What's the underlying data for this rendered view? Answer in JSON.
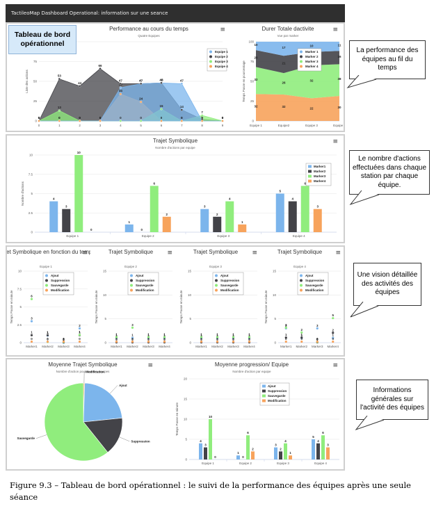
{
  "header": {
    "title": "TactileoMap Dashboard Operational: information sur une seance"
  },
  "badge": {
    "text": "Tableau de bord opérationnel"
  },
  "menu_icon": "hamburger-menu-icon",
  "colors": {
    "blue": "#7cb5ec",
    "black": "#434348",
    "green": "#90ed7d",
    "orange": "#f7a35c"
  },
  "callouts": [
    {
      "text": "La performance des équipes au fil du temps"
    },
    {
      "text": "Le nombre d'actions effectuées dans chaque station par chaque équipe."
    },
    {
      "text": "Une vision détaillée des activités des équipes"
    },
    {
      "text": "Informations générales sur l'activité des équipes"
    }
  ],
  "caption": {
    "text": "Figure 9.3 – Tableau de bord opérationnel : le suivi de la performance des équipes après une seule séance"
  },
  "chart_data": [
    {
      "id": "perf",
      "type": "area",
      "title": "Performance au cours du temps",
      "subtitle": "Quatre Equipes",
      "ylabel": "Liste des actions",
      "x": [
        0,
        1,
        2,
        3,
        4,
        5,
        6,
        7,
        8,
        9
      ],
      "ylim": [
        0,
        100
      ],
      "yticks": [
        0,
        25,
        50,
        75,
        100
      ],
      "series": [
        {
          "name": "Equipe 1",
          "color": "#7cb5ec",
          "values": [
            0,
            0,
            0,
            0,
            42,
            47,
            48,
            47,
            0,
            0
          ]
        },
        {
          "name": "Equipe 2",
          "color": "#434348",
          "values": [
            0,
            53,
            44,
            66,
            47,
            47,
            48,
            14,
            2,
            0
          ]
        },
        {
          "name": "Equipe 3",
          "color": "#90ed7d",
          "values": [
            0,
            13,
            0,
            0,
            0,
            0,
            15,
            0,
            7,
            0
          ]
        },
        {
          "name": "Equipe 4",
          "color": "#f7a35c",
          "values": [
            0,
            0,
            0,
            0,
            34,
            24,
            0,
            0,
            0,
            0
          ]
        }
      ]
    },
    {
      "id": "durer",
      "type": "bar",
      "stacked": "percent",
      "title": "Durer Totale dactivite",
      "subtitle": "Vue par marker",
      "ylabel": "Temps Passe en pourcentage",
      "categories": [
        "Equipe 1",
        "Equipe2",
        "Equipe 3",
        "Equipe 4"
      ],
      "yticks": [
        0,
        25,
        50,
        75,
        100
      ],
      "series": [
        {
          "name": "Marker 1",
          "color": "#7cb5ec",
          "values": [
            10,
            17,
            10,
            11
          ]
        },
        {
          "name": "Marker 2",
          "color": "#434348",
          "values": [
            20,
            21,
            13,
            16
          ]
        },
        {
          "name": "Marker 3",
          "color": "#90ed7d",
          "values": [
            32,
            26,
            32,
            38
          ]
        },
        {
          "name": "Marker 4",
          "color": "#f7a35c",
          "values": [
            32,
            32,
            22,
            30
          ]
        }
      ]
    },
    {
      "id": "trajet",
      "type": "bar",
      "title": "Trajet Symbolique",
      "subtitle": "Nombre d'actions par equipe",
      "ylabel": "Nombre d'actions",
      "categories": [
        "Equipe 1",
        "Equipe 2",
        "Equipe 3",
        "Equipe 4"
      ],
      "ylim": [
        0,
        10
      ],
      "yticks": [
        0,
        2.5,
        5,
        7.5,
        10
      ],
      "series": [
        {
          "name": "Marker1",
          "color": "#7cb5ec",
          "values": [
            4,
            1,
            3,
            5
          ]
        },
        {
          "name": "Marker2",
          "color": "#434348",
          "values": [
            3,
            0,
            2,
            4
          ]
        },
        {
          "name": "Marker3",
          "color": "#90ed7d",
          "values": [
            10,
            6,
            4,
            6
          ]
        },
        {
          "name": "Marker4",
          "color": "#f7a35c",
          "values": [
            0,
            2,
            1,
            3
          ]
        }
      ]
    },
    {
      "id": "s1",
      "type": "scatter",
      "title": "Trajet Symbolique en fonction du temps",
      "subtitle": "Equipe 1",
      "ylabel": "Temps Passe en minute",
      "categories": [
        "Marker1",
        "Marker2",
        "Marker3",
        "Marker4"
      ],
      "ylim": [
        0,
        10
      ],
      "yticks": [
        0,
        2.5,
        5,
        7.5,
        10
      ],
      "series": [
        {
          "name": "Ajout",
          "color": "#7cb5ec",
          "values": [
            3,
            1,
            0,
            2
          ]
        },
        {
          "name": "Suppression",
          "color": "#434348",
          "values": [
            1,
            1,
            0,
            1
          ]
        },
        {
          "name": "Sauvegarde",
          "color": "#90ed7d",
          "values": [
            6,
            0,
            0,
            1
          ]
        },
        {
          "name": "Modification",
          "color": "#f7a35c",
          "values": [
            0,
            0,
            0,
            0
          ]
        }
      ]
    },
    {
      "id": "s2",
      "type": "scatter",
      "title": "Trajet Symbolique",
      "subtitle": "Equipe 2",
      "ylabel": "Temps Passe en minute",
      "categories": [
        "Marker1",
        "Marker2",
        "Marker3",
        "Marker4"
      ],
      "yticks": [
        0,
        5,
        10,
        15
      ],
      "series": [
        {
          "name": "Ajout",
          "color": "#7cb5ec",
          "values": [
            1,
            1,
            1,
            1
          ]
        },
        {
          "name": "Suppression",
          "color": "#434348",
          "values": [
            0,
            0,
            0,
            0
          ]
        },
        {
          "name": "Sauvegarde",
          "color": "#90ed7d",
          "values": [
            1,
            3,
            1,
            1
          ]
        },
        {
          "name": "Modification",
          "color": "#f7a35c",
          "values": [
            0,
            0,
            0,
            0
          ]
        }
      ]
    },
    {
      "id": "s3",
      "type": "scatter",
      "title": "Trajet Symbolique",
      "subtitle": "Equipe 3",
      "ylabel": "Temps Passe en minute",
      "categories": [
        "Marker1",
        "Marker2",
        "Marker3",
        "Marker4"
      ],
      "yticks": [
        0,
        5,
        10,
        15
      ],
      "series": [
        {
          "name": "Ajout",
          "color": "#7cb5ec",
          "values": [
            1,
            1,
            1,
            1
          ]
        },
        {
          "name": "Suppression",
          "color": "#434348",
          "values": [
            0,
            0,
            0,
            0
          ]
        },
        {
          "name": "Sauvegarde",
          "color": "#90ed7d",
          "values": [
            1,
            1,
            1,
            1
          ]
        },
        {
          "name": "Modification",
          "color": "#f7a35c",
          "values": [
            0,
            0,
            0,
            0
          ]
        }
      ]
    },
    {
      "id": "s4",
      "type": "scatter",
      "title": "Trajet Symbolique",
      "subtitle": "Equipe 4",
      "ylabel": "Temps Passe en minute",
      "categories": [
        "Marker1",
        "Marker2",
        "Marker3",
        "Marker4"
      ],
      "yticks": [
        0,
        5,
        10,
        15
      ],
      "series": [
        {
          "name": "Ajout",
          "color": "#7cb5ec",
          "values": [
            3,
            1,
            3,
            1
          ]
        },
        {
          "name": "Suppression",
          "color": "#434348",
          "values": [
            1,
            1,
            0,
            2
          ]
        },
        {
          "name": "Sauvegarde",
          "color": "#90ed7d",
          "values": [
            3,
            2,
            0,
            5
          ]
        },
        {
          "name": "Modification",
          "color": "#f7a35c",
          "values": [
            0,
            0,
            0,
            0
          ]
        }
      ]
    },
    {
      "id": "pie",
      "type": "pie",
      "title": "Moyenne Trajet Symbolique",
      "subtitle": "Nombre d'action pour tous les equipes",
      "slices": [
        {
          "name": "Ajout",
          "color": "#7cb5ec",
          "value": 23
        },
        {
          "name": "Suppression",
          "color": "#434348",
          "value": 16
        },
        {
          "name": "Sauvegarde",
          "color": "#90ed7d",
          "value": 61
        },
        {
          "name": "Modification",
          "color": "#f7a35c",
          "value": 0.5
        }
      ]
    },
    {
      "id": "prog",
      "type": "bar",
      "title": "Moyenne progression/ Equipe",
      "subtitle": "Nombre d'action par equipe",
      "ylabel": "Temps Passe en minute",
      "categories": [
        "Equipe 1",
        "Equipe 2",
        "Equipe 3",
        "Equipe 4"
      ],
      "ylim": [
        0,
        20
      ],
      "yticks": [
        0,
        5,
        10,
        15,
        20
      ],
      "series": [
        {
          "name": "Ajout",
          "color": "#7cb5ec",
          "values": [
            4,
            1,
            3,
            5
          ]
        },
        {
          "name": "Suppression",
          "color": "#434348",
          "values": [
            3,
            0,
            2,
            4
          ]
        },
        {
          "name": "Sauvegarde",
          "color": "#90ed7d",
          "values": [
            10,
            6,
            4,
            6
          ]
        },
        {
          "name": "Modification",
          "color": "#f7a35c",
          "values": [
            0,
            2,
            1,
            3
          ]
        }
      ]
    }
  ]
}
